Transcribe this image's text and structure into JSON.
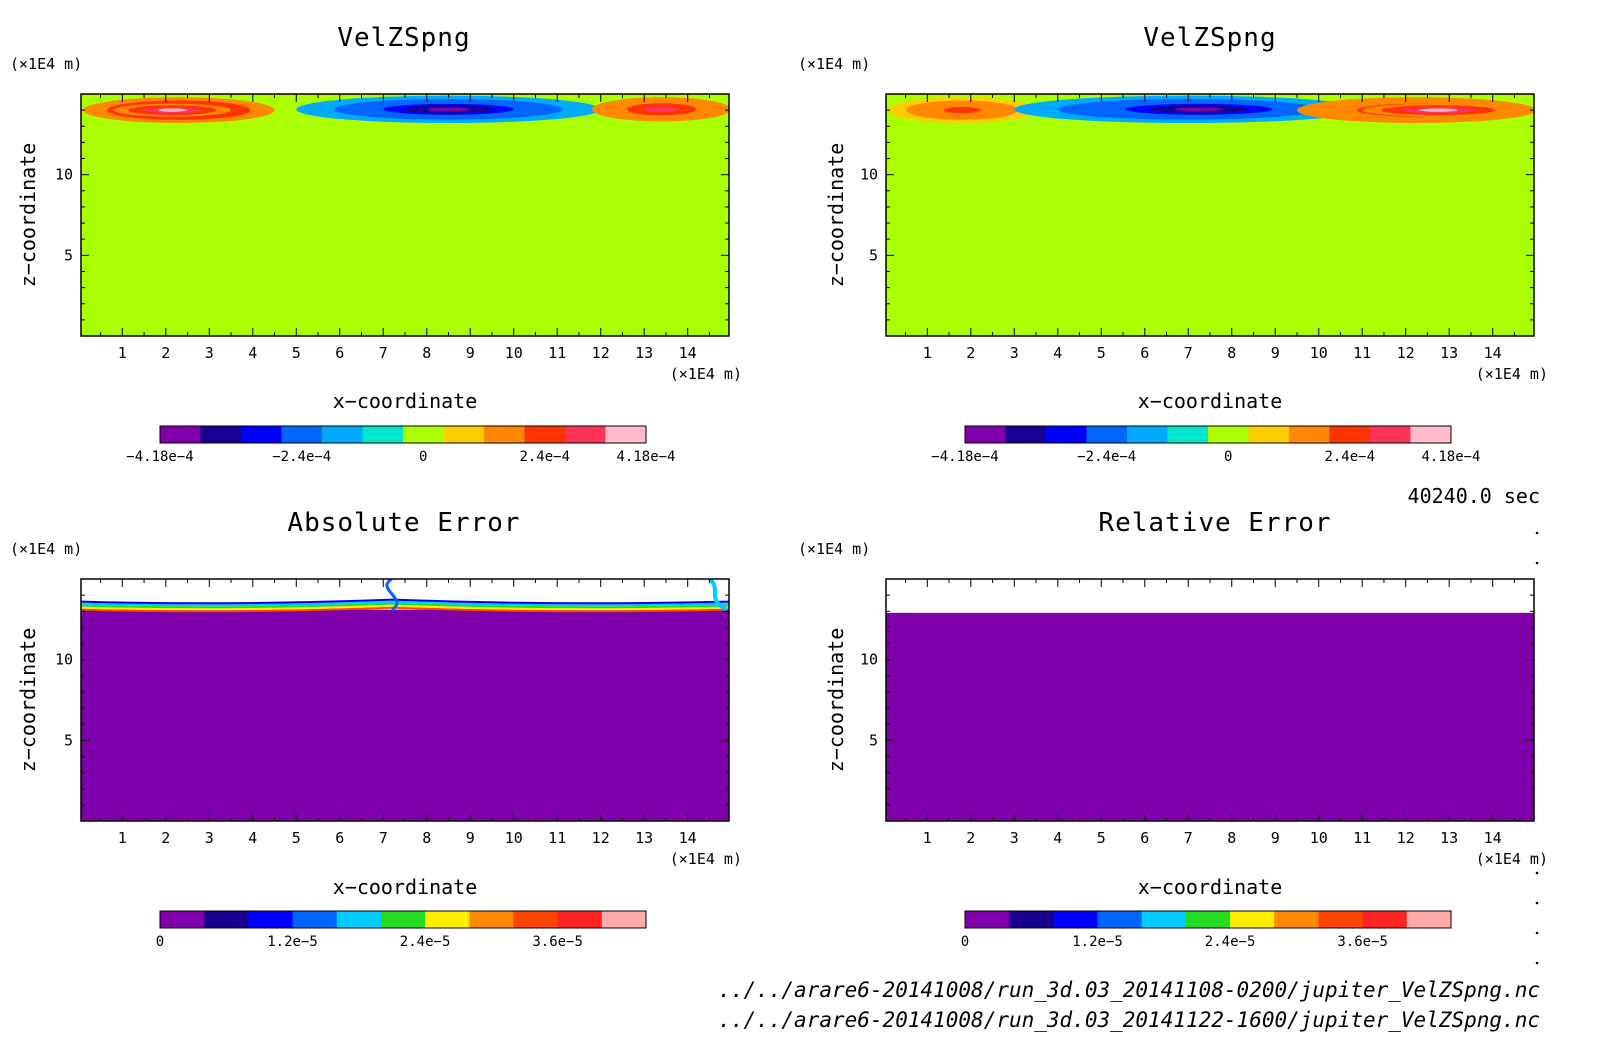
{
  "time_label": "40240.0 sec",
  "file_paths": [
    "../../arare6-20141008/run_3d.03_20141108-0200/jupiter_VelZSpng.nc",
    "../../arare6-20141008/run_3d.03_20141122-1600/jupiter_VelZSpng.nc"
  ],
  "colors": {
    "background_field": "#aaff00",
    "error_background": "#7f00aa",
    "velocity_levels": [
      "#7f00aa",
      "#1a0090",
      "#0000ff",
      "#0066ff",
      "#00aaff",
      "#00e5cc",
      "#aaff00",
      "#ffcc00",
      "#ff8800",
      "#ff3300",
      "#ff3355",
      "#ffbbcc"
    ],
    "error_levels": [
      "#7f00aa",
      "#1a0090",
      "#0000ff",
      "#0066ff",
      "#00ccff",
      "#22dd22",
      "#ffee00",
      "#ff8800",
      "#ff4400",
      "#ff2222",
      "#ffaaaa"
    ]
  },
  "chart_data": [
    {
      "type": "heatmap",
      "title": "VelZSpng",
      "xlabel": "x−coordinate",
      "ylabel": "z−coordinate",
      "x_unit": "(×1E4 m)",
      "y_unit": "(×1E4 m)",
      "x_ticks": [
        1,
        2,
        3,
        4,
        5,
        6,
        7,
        8,
        9,
        10,
        11,
        12,
        13,
        14
      ],
      "y_ticks": [
        5,
        10
      ],
      "xlim": [
        0.05,
        14.95
      ],
      "ylim": [
        0,
        15
      ],
      "colorbar": {
        "ticks": [
          "−4.18e−4",
          "−2.4e−4",
          "0",
          "2.4e−4",
          "4.18e−4"
        ],
        "range": [
          -0.000418,
          0.000418
        ]
      },
      "note": "upwelling (positive, red) near x=1-4 and x=12-15, downwelling (negative, blue) near x=6-11 in the sponge layer z>13",
      "features": [
        {
          "x": [
            0.1,
            4.5
          ],
          "z": [
            13.2,
            14.8
          ],
          "value": 0.00032
        },
        {
          "x": [
            0.8,
            3.5
          ],
          "z": [
            13.6,
            14.4
          ],
          "value": 0.0004
        },
        {
          "x": [
            5.0,
            12.0
          ],
          "z": [
            13.2,
            14.9
          ],
          "value": -0.00024
        },
        {
          "x": [
            6.5,
            10.5
          ],
          "z": [
            13.6,
            14.5
          ],
          "value": -0.00036
        },
        {
          "x": [
            11.8,
            15.0
          ],
          "z": [
            13.3,
            14.8
          ],
          "value": 0.0003
        }
      ]
    },
    {
      "type": "heatmap",
      "title": "VelZSpng",
      "xlabel": "x−coordinate",
      "ylabel": "z−coordinate",
      "x_unit": "(×1E4 m)",
      "y_unit": "(×1E4 m)",
      "x_ticks": [
        1,
        2,
        3,
        4,
        5,
        6,
        7,
        8,
        9,
        10,
        11,
        12,
        13,
        14
      ],
      "y_ticks": [
        5,
        10
      ],
      "xlim": [
        0.05,
        14.95
      ],
      "ylim": [
        0,
        15
      ],
      "colorbar": {
        "ticks": [
          "−4.18e−4",
          "−2.4e−4",
          "0",
          "2.4e−4",
          "4.18e−4"
        ],
        "range": [
          -0.000418,
          0.000418
        ]
      },
      "features": [
        {
          "x": [
            0.1,
            3.5
          ],
          "z": [
            13.2,
            14.8
          ],
          "value": 0.00024
        },
        {
          "x": [
            3.0,
            11.0
          ],
          "z": [
            13.2,
            14.9
          ],
          "value": -0.00024
        },
        {
          "x": [
            5.0,
            9.5
          ],
          "z": [
            13.6,
            14.5
          ],
          "value": -0.00036
        },
        {
          "x": [
            9.5,
            15.0
          ],
          "z": [
            13.2,
            14.8
          ],
          "value": 0.0003
        },
        {
          "x": [
            11.0,
            14.5
          ],
          "z": [
            13.6,
            14.4
          ],
          "value": 0.0004
        }
      ]
    },
    {
      "type": "heatmap",
      "title": "Absolute Error",
      "xlabel": "x−coordinate",
      "ylabel": "z−coordinate",
      "x_unit": "(×1E4 m)",
      "y_unit": "(×1E4 m)",
      "x_ticks": [
        1,
        2,
        3,
        4,
        5,
        6,
        7,
        8,
        9,
        10,
        11,
        12,
        13,
        14
      ],
      "y_ticks": [
        5,
        10
      ],
      "xlim": [
        0.05,
        14.95
      ],
      "ylim": [
        0,
        15
      ],
      "colorbar": {
        "ticks": [
          "0",
          "1.2e−5",
          "2.4e−5",
          "3.6e−5"
        ],
        "range": [
          0,
          4.4e-05
        ]
      },
      "note": "zero everywhere below z~13; exceeds color range (white) in sponge layer"
    },
    {
      "type": "heatmap",
      "title": "Relative Error",
      "xlabel": "x−coordinate",
      "ylabel": "z−coordinate",
      "x_unit": "(×1E4 m)",
      "y_unit": "(×1E4 m)",
      "x_ticks": [
        1,
        2,
        3,
        4,
        5,
        6,
        7,
        8,
        9,
        10,
        11,
        12,
        13,
        14
      ],
      "y_ticks": [
        5,
        10
      ],
      "xlim": [
        0.05,
        14.95
      ],
      "ylim": [
        0,
        15
      ],
      "colorbar": {
        "ticks": [
          "0",
          "1.2e−5",
          "2.4e−5",
          "3.6e−5"
        ],
        "range": [
          0,
          4.4e-05
        ]
      },
      "note": "zero below z~12.9; undefined (white) above"
    }
  ]
}
